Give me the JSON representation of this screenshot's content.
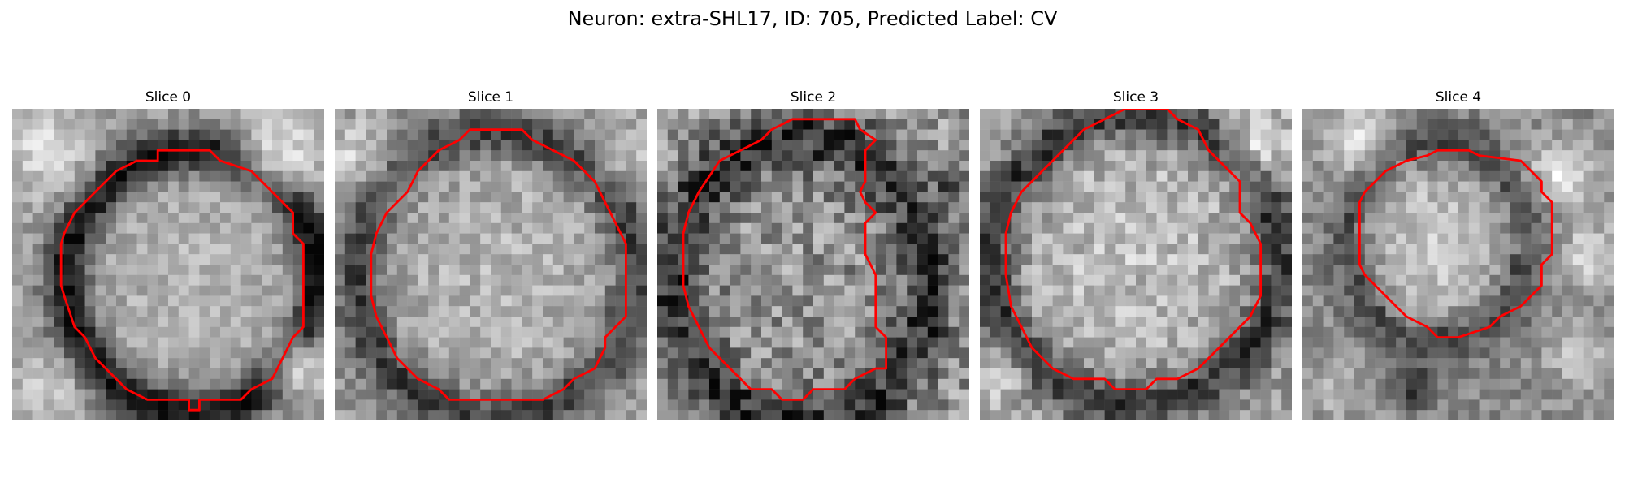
{
  "figure": {
    "title": "Neuron: extra-SHL17, ID: 705, Predicted Label: CV",
    "contour_color": "#ff0000"
  },
  "panels": [
    {
      "title": "Slice 0"
    },
    {
      "title": "Slice 1"
    },
    {
      "title": "Slice 2"
    },
    {
      "title": "Slice 3"
    },
    {
      "title": "Slice 4"
    }
  ]
}
